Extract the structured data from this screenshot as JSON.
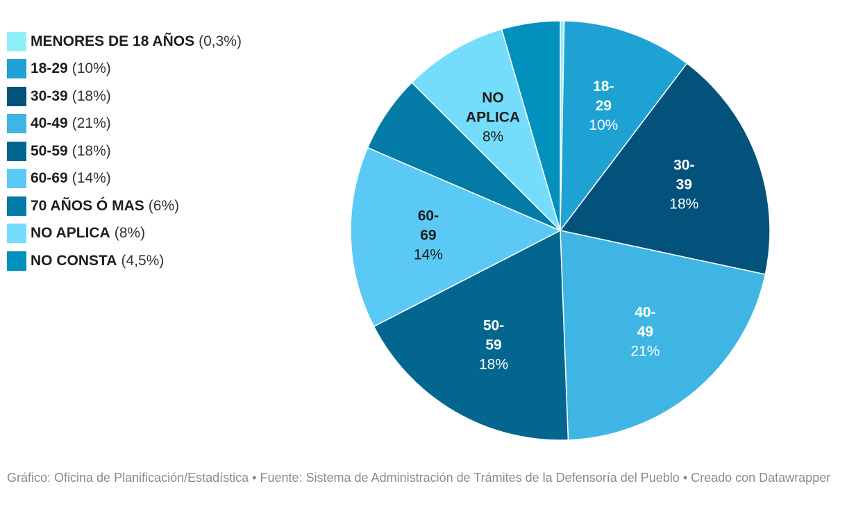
{
  "chart_data": {
    "type": "pie",
    "slices": [
      {
        "name": "MENORES DE 18 AÑOS",
        "value": 0.3,
        "value_label": "(0,3%)",
        "color": "#8ff0fa",
        "text_color": "#1d1d1d",
        "label_lines": [],
        "pct_label": ""
      },
      {
        "name": "18-29",
        "value": 10,
        "value_label": "(10%)",
        "color": "#1da2d3",
        "text_color": "#ffffff",
        "label_lines": [
          "18-",
          "29"
        ],
        "pct_label": "10%"
      },
      {
        "name": "30-39",
        "value": 18,
        "value_label": "(18%)",
        "color": "#02527c",
        "text_color": "#ffffff",
        "label_lines": [
          "30-",
          "39"
        ],
        "pct_label": "18%"
      },
      {
        "name": "40-49",
        "value": 21,
        "value_label": "(21%)",
        "color": "#3eb5e2",
        "text_color": "#ffffff",
        "label_lines": [
          "40-",
          "49"
        ],
        "pct_label": "21%"
      },
      {
        "name": "50-59",
        "value": 18,
        "value_label": "(18%)",
        "color": "#03668f",
        "text_color": "#ffffff",
        "label_lines": [
          "50-",
          "59"
        ],
        "pct_label": "18%"
      },
      {
        "name": "60-69",
        "value": 14,
        "value_label": "(14%)",
        "color": "#5bc9f5",
        "text_color": "#1d1d1d",
        "label_lines": [
          "60-",
          "69"
        ],
        "pct_label": "14%"
      },
      {
        "name": "70 AÑOS Ó MAS",
        "value": 6,
        "value_label": "(6%)",
        "color": "#047aa6",
        "text_color": "#ffffff",
        "label_lines": [],
        "pct_label": ""
      },
      {
        "name": "NO APLICA",
        "value": 8,
        "value_label": "(8%)",
        "color": "#75ddfc",
        "text_color": "#1d1d1d",
        "label_lines": [
          "NO",
          "APLICA"
        ],
        "pct_label": "8%"
      },
      {
        "name": "NO CONSTA",
        "value": 4.5,
        "value_label": "(4,5%)",
        "color": "#0290bc",
        "text_color": "#ffffff",
        "label_lines": [],
        "pct_label": ""
      }
    ],
    "legend_position": "top-left",
    "start_angle": "12 o'clock, clockwise"
  },
  "footer": {
    "text": "Gráfico: Oficina de Planificación/Estadística • Fuente: Sistema de Administración de Trámites de la Defensoría del Pueblo • Creado con Datawrapper"
  }
}
